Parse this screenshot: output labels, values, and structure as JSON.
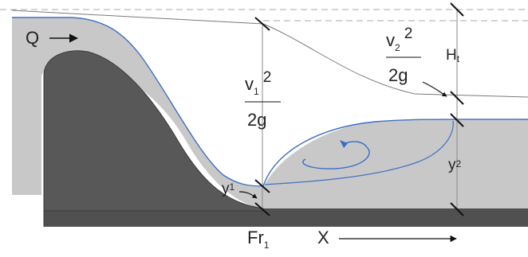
{
  "labels": {
    "flow": "Q",
    "v1_top": "v",
    "v1_sub": "1",
    "v1_sup": "2",
    "g1": "2g",
    "v2_top": "v",
    "v2_sub": "2",
    "v2_sup": "2",
    "g2": "2g",
    "head_loss": "H",
    "head_loss_sub": "t",
    "depth1": "y",
    "depth1_sub": "1",
    "depth2": "y",
    "depth2_sub": "2",
    "froude": "Fr",
    "froude_sub": "1",
    "length": "X"
  },
  "colors": {
    "background": "#ffffff",
    "water": "#c8c8c8",
    "spillway": "#585858",
    "floor": "#505050",
    "water_surface": "#3f6fc2",
    "vortex_arrow": "#3a6cc8",
    "energy_line": "#7a7a7a",
    "dashed_line": "#a8a8a8",
    "ink": "#111111"
  }
}
